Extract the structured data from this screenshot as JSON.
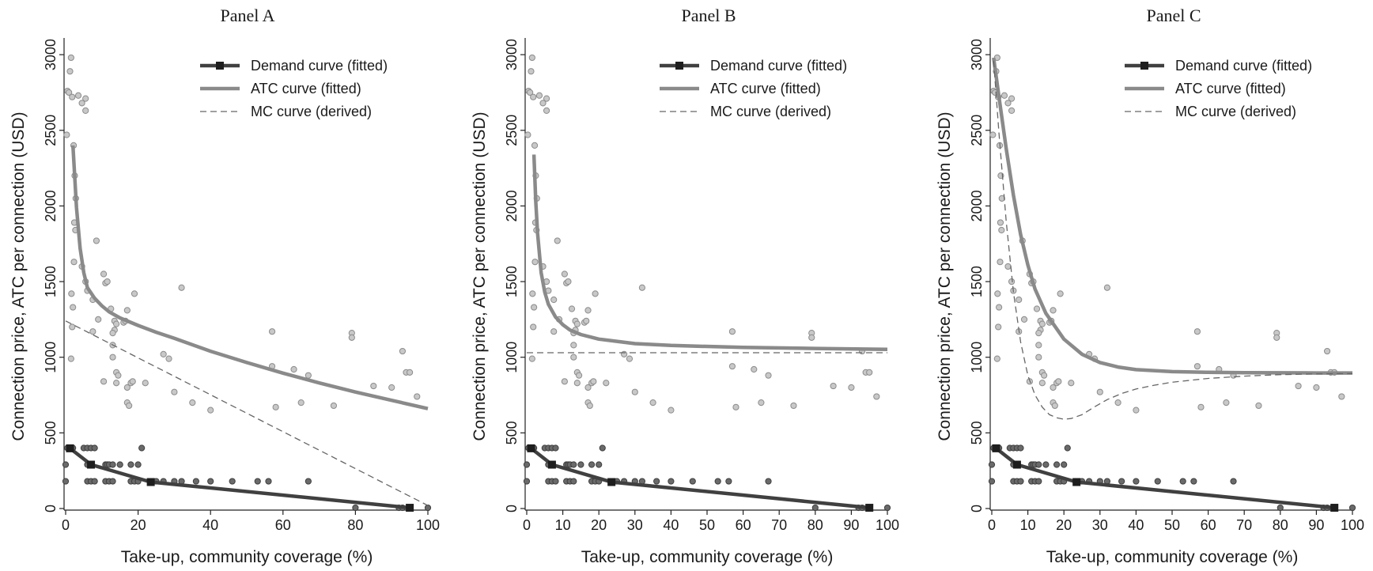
{
  "chart_data": [
    {
      "type": "scatter",
      "title": "Panel A",
      "xlabel": "Take-up, community coverage (%)",
      "ylabel": "Connection price, ATC per connection (USD)",
      "xlim": [
        0,
        100
      ],
      "ylim": [
        0,
        3100
      ],
      "xticks": [
        "0",
        "20",
        "40",
        "60",
        "80",
        "100"
      ],
      "yticks": [
        "0",
        "500",
        "1000",
        "1500",
        "2000",
        "2500",
        "3000"
      ],
      "legend_position": "top-right",
      "legend": [
        "Demand curve (fitted)",
        "ATC curve (fitted)",
        "MC curve (derived)"
      ],
      "series": [
        {
          "name": "Demand curve (fitted)",
          "kind": "line-markers",
          "color": "#404040",
          "x": [
            1.2,
            7,
            23.5,
            95
          ],
          "y": [
            398,
            290,
            175,
            5
          ]
        },
        {
          "name": "ATC curve (fitted)",
          "kind": "line",
          "color": "#8a8a8a",
          "x": [
            2,
            3,
            4,
            5,
            6,
            8,
            10,
            12,
            15,
            20,
            25,
            30,
            40,
            50,
            60,
            70,
            80,
            90,
            100
          ],
          "y": [
            2400,
            1990,
            1720,
            1560,
            1460,
            1390,
            1340,
            1300,
            1260,
            1210,
            1165,
            1125,
            1040,
            965,
            895,
            830,
            770,
            715,
            660
          ]
        },
        {
          "name": "MC curve (derived)",
          "kind": "dashed",
          "color": "#666666",
          "x": [
            0,
            100
          ],
          "y": [
            1240,
            20
          ]
        }
      ]
    },
    {
      "type": "scatter",
      "title": "Panel B",
      "xlabel": "Take-up, community coverage (%)",
      "ylabel": "Connection price, ATC per connection (USD)",
      "xlim": [
        0,
        100
      ],
      "ylim": [
        0,
        3100
      ],
      "xticks": [
        "0",
        "10",
        "20",
        "30",
        "40",
        "50",
        "60",
        "70",
        "80",
        "90",
        "100"
      ],
      "yticks": [
        "0",
        "500",
        "1000",
        "1500",
        "2000",
        "2500",
        "3000"
      ],
      "legend_position": "top-right",
      "legend": [
        "Demand curve (fitted)",
        "ATC curve (fitted)",
        "MC curve (derived)"
      ],
      "series": [
        {
          "name": "Demand curve (fitted)",
          "kind": "line-markers",
          "color": "#404040",
          "x": [
            1.2,
            7,
            23.5,
            95
          ],
          "y": [
            398,
            290,
            175,
            5
          ]
        },
        {
          "name": "ATC curve (fitted)",
          "kind": "line",
          "color": "#8a8a8a",
          "x": [
            2,
            2.5,
            3,
            4,
            5,
            6,
            8,
            10,
            12,
            15,
            20,
            30,
            40,
            60,
            80,
            100
          ],
          "y": [
            2340,
            2030,
            1820,
            1560,
            1430,
            1350,
            1265,
            1215,
            1180,
            1150,
            1120,
            1090,
            1078,
            1065,
            1058,
            1052
          ]
        },
        {
          "name": "MC curve (derived)",
          "kind": "dashed",
          "color": "#666666",
          "x": [
            0,
            100
          ],
          "y": [
            1030,
            1030
          ]
        }
      ]
    },
    {
      "type": "scatter",
      "title": "Panel C",
      "xlabel": "Take-up, community coverage (%)",
      "ylabel": "Connection price, ATC per connection (USD)",
      "xlim": [
        0,
        100
      ],
      "ylim": [
        0,
        3100
      ],
      "xticks": [
        "0",
        "10",
        "20",
        "30",
        "40",
        "50",
        "60",
        "70",
        "80",
        "90",
        "100"
      ],
      "yticks": [
        "0",
        "500",
        "1000",
        "1500",
        "2000",
        "2500",
        "3000"
      ],
      "legend_position": "top-right",
      "legend": [
        "Demand curve (fitted)",
        "ATC curve (fitted)",
        "MC curve (derived)"
      ],
      "series": [
        {
          "name": "Demand curve (fitted)",
          "kind": "line-markers",
          "color": "#404040",
          "x": [
            1.2,
            7,
            23.5,
            95
          ],
          "y": [
            398,
            290,
            175,
            5
          ]
        },
        {
          "name": "ATC curve (fitted)",
          "kind": "line",
          "color": "#8a8a8a",
          "x": [
            0.5,
            2,
            4,
            6,
            8,
            10,
            12,
            15,
            20,
            25,
            30,
            35,
            40,
            50,
            60,
            70,
            80,
            90,
            100
          ],
          "y": [
            2980,
            2720,
            2380,
            2070,
            1810,
            1610,
            1450,
            1290,
            1120,
            1020,
            965,
            935,
            918,
            905,
            900,
            898,
            897,
            896,
            896
          ]
        },
        {
          "name": "MC curve (derived)",
          "kind": "dashed",
          "color": "#666666",
          "x": [
            0.5,
            2,
            4,
            6,
            8,
            10,
            12,
            14,
            16,
            18,
            20,
            22,
            25,
            28,
            32,
            36,
            40,
            45,
            50,
            60,
            70,
            80,
            90,
            100
          ],
          "y": [
            2960,
            2480,
            1900,
            1430,
            1100,
            880,
            750,
            670,
            620,
            600,
            590,
            595,
            620,
            665,
            720,
            760,
            790,
            815,
            835,
            860,
            875,
            885,
            890,
            892
          ]
        }
      ]
    }
  ],
  "scatter_points": [
    [
      0.3,
      2470
    ],
    [
      0.5,
      2760
    ],
    [
      0.9,
      2750
    ],
    [
      1.2,
      2890
    ],
    [
      1.5,
      2980
    ],
    [
      1.8,
      2720
    ],
    [
      2.2,
      2400
    ],
    [
      2.5,
      2200
    ],
    [
      2.8,
      2050
    ],
    [
      2.4,
      1890
    ],
    [
      2.7,
      1840
    ],
    [
      2.3,
      1630
    ],
    [
      1.6,
      1420
    ],
    [
      2,
      1330
    ],
    [
      1.8,
      1200
    ],
    [
      1.5,
      990
    ],
    [
      3.5,
      2730
    ],
    [
      4.5,
      2680
    ],
    [
      5.5,
      2710
    ],
    [
      5.5,
      2630
    ],
    [
      4.5,
      1600
    ],
    [
      5.5,
      1500
    ],
    [
      6,
      1440
    ],
    [
      7.5,
      1170
    ],
    [
      7.5,
      1380
    ],
    [
      8.5,
      1770
    ],
    [
      9,
      1250
    ],
    [
      10.5,
      1550
    ],
    [
      11,
      1490
    ],
    [
      11.5,
      1500
    ],
    [
      10.5,
      840
    ],
    [
      12.5,
      1320
    ],
    [
      13.5,
      1240
    ],
    [
      14,
      1220
    ],
    [
      13.5,
      1180
    ],
    [
      13,
      1160
    ],
    [
      13,
      1080
    ],
    [
      13,
      1000
    ],
    [
      14,
      900
    ],
    [
      14.5,
      880
    ],
    [
      14,
      830
    ],
    [
      16,
      1230
    ],
    [
      16.5,
      1240
    ],
    [
      17,
      800
    ],
    [
      17,
      700
    ],
    [
      17.5,
      680
    ],
    [
      18,
      830
    ],
    [
      18.5,
      840
    ],
    [
      17,
      1310
    ],
    [
      19,
      1420
    ],
    [
      22,
      830
    ],
    [
      27,
      1020
    ],
    [
      28.5,
      990
    ],
    [
      30,
      770
    ],
    [
      32,
      1460
    ],
    [
      35,
      700
    ],
    [
      40,
      650
    ],
    [
      57,
      1170
    ],
    [
      57,
      940
    ],
    [
      58,
      670
    ],
    [
      63,
      920
    ],
    [
      65,
      700
    ],
    [
      67,
      880
    ],
    [
      74,
      680
    ],
    [
      79,
      1160
    ],
    [
      79,
      1130
    ],
    [
      85,
      810
    ],
    [
      90,
      800
    ],
    [
      93,
      1040
    ],
    [
      94,
      900
    ],
    [
      95,
      900
    ],
    [
      97,
      740
    ]
  ],
  "demand_points": [
    [
      0,
      290
    ],
    [
      0,
      180
    ],
    [
      0.5,
      400
    ],
    [
      1,
      400
    ],
    [
      1.5,
      400
    ],
    [
      2,
      400
    ],
    [
      5,
      400
    ],
    [
      6,
      400
    ],
    [
      7,
      400
    ],
    [
      8,
      400
    ],
    [
      6,
      290
    ],
    [
      7,
      290
    ],
    [
      6,
      180
    ],
    [
      7,
      180
    ],
    [
      8,
      180
    ],
    [
      11,
      290
    ],
    [
      11.5,
      290
    ],
    [
      12,
      290
    ],
    [
      13,
      290
    ],
    [
      11,
      180
    ],
    [
      12,
      180
    ],
    [
      13,
      180
    ],
    [
      15,
      290
    ],
    [
      18,
      290
    ],
    [
      20,
      290
    ],
    [
      21,
      400
    ],
    [
      18,
      180
    ],
    [
      19,
      180
    ],
    [
      20,
      180
    ],
    [
      25,
      180
    ],
    [
      27,
      180
    ],
    [
      30,
      180
    ],
    [
      32,
      180
    ],
    [
      36,
      180
    ],
    [
      40,
      180
    ],
    [
      46,
      180
    ],
    [
      53,
      180
    ],
    [
      56,
      180
    ],
    [
      67,
      180
    ],
    [
      80,
      5
    ],
    [
      92,
      5
    ],
    [
      93,
      5
    ],
    [
      100,
      5
    ]
  ]
}
